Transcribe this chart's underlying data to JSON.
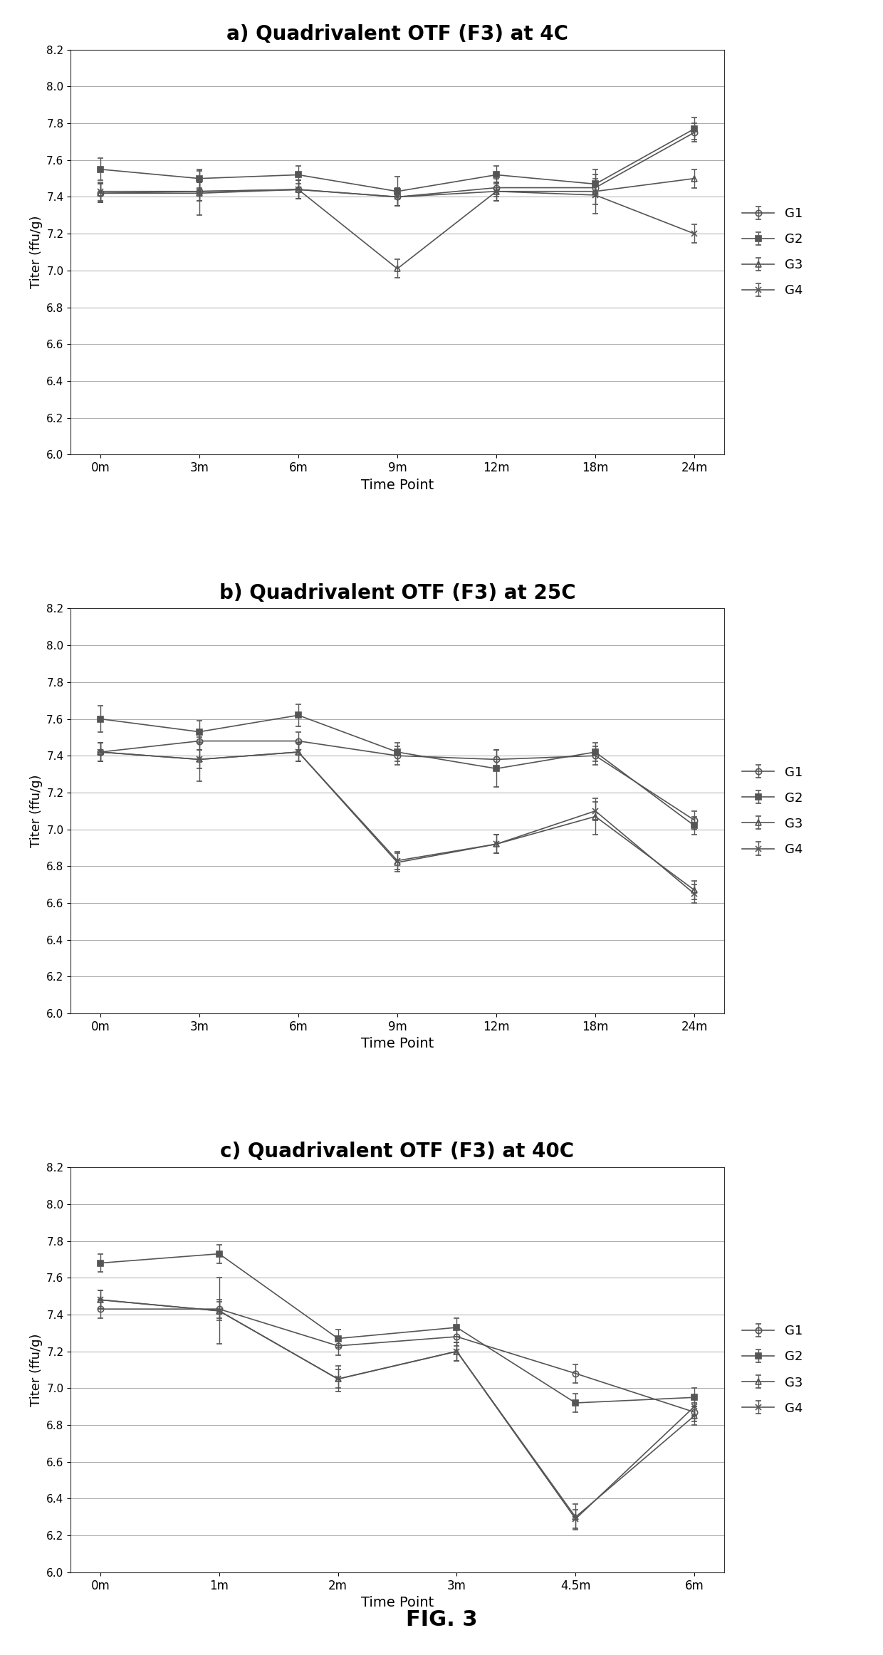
{
  "subplot_a": {
    "title": "a) Quadrivalent OTF (F3) at 4C",
    "xticklabels": [
      "0m",
      "3m",
      "6m",
      "9m",
      "12m",
      "18m",
      "24m"
    ],
    "xlabel": "Time Point",
    "ylabel": "Titer (ffu/g)",
    "ylim": [
      6.0,
      8.2
    ],
    "yticks": [
      6.0,
      6.2,
      6.4,
      6.6,
      6.8,
      7.0,
      7.2,
      7.4,
      7.6,
      7.8,
      8.0,
      8.2
    ],
    "G1": {
      "y": [
        7.42,
        7.43,
        7.44,
        7.4,
        7.45,
        7.45,
        7.75
      ],
      "yerr": [
        0.05,
        0.05,
        0.05,
        0.05,
        0.05,
        0.05,
        0.05
      ]
    },
    "G2": {
      "y": [
        7.55,
        7.5,
        7.52,
        7.43,
        7.52,
        7.47,
        7.77
      ],
      "yerr": [
        0.06,
        0.05,
        0.05,
        0.08,
        0.05,
        0.05,
        0.06
      ]
    },
    "G3": {
      "y": [
        7.42,
        7.42,
        7.44,
        7.01,
        7.43,
        7.43,
        7.5
      ],
      "yerr": [
        0.05,
        0.12,
        0.05,
        0.05,
        0.05,
        0.12,
        0.05
      ]
    },
    "G4": {
      "y": [
        7.43,
        7.43,
        7.44,
        7.4,
        7.43,
        7.41,
        7.2
      ],
      "yerr": [
        0.05,
        0.05,
        0.05,
        0.05,
        0.05,
        0.05,
        0.05
      ]
    }
  },
  "subplot_b": {
    "title": "b) Quadrivalent OTF (F3) at 25C",
    "xticklabels": [
      "0m",
      "3m",
      "6m",
      "9m",
      "12m",
      "18m",
      "24m"
    ],
    "xlabel": "Time Point",
    "ylabel": "Titer (ffu/g)",
    "ylim": [
      6.0,
      8.2
    ],
    "yticks": [
      6.0,
      6.2,
      6.4,
      6.6,
      6.8,
      7.0,
      7.2,
      7.4,
      7.6,
      7.8,
      8.0,
      8.2
    ],
    "G1": {
      "y": [
        7.42,
        7.48,
        7.48,
        7.4,
        7.38,
        7.4,
        7.05
      ],
      "yerr": [
        0.05,
        0.05,
        0.05,
        0.05,
        0.05,
        0.05,
        0.05
      ]
    },
    "G2": {
      "y": [
        7.6,
        7.53,
        7.62,
        7.42,
        7.33,
        7.42,
        7.02
      ],
      "yerr": [
        0.07,
        0.06,
        0.06,
        0.05,
        0.1,
        0.05,
        0.05
      ]
    },
    "G3": {
      "y": [
        7.42,
        7.38,
        7.42,
        6.82,
        6.92,
        7.07,
        6.67
      ],
      "yerr": [
        0.05,
        0.12,
        0.05,
        0.05,
        0.05,
        0.1,
        0.05
      ]
    },
    "G4": {
      "y": [
        7.42,
        7.38,
        7.42,
        6.83,
        6.92,
        7.1,
        6.65
      ],
      "yerr": [
        0.05,
        0.05,
        0.05,
        0.05,
        0.05,
        0.05,
        0.05
      ]
    }
  },
  "subplot_c": {
    "title": "c) Quadrivalent OTF (F3) at 40C",
    "xticklabels": [
      "0m",
      "1m",
      "2m",
      "3m",
      "4.5m",
      "6m"
    ],
    "xlabel": "Time Point",
    "ylabel": "Titer (ffu/g)",
    "ylim": [
      6.0,
      8.2
    ],
    "yticks": [
      6.0,
      6.2,
      6.4,
      6.6,
      6.8,
      7.0,
      7.2,
      7.4,
      7.6,
      7.8,
      8.0,
      8.2
    ],
    "G1": {
      "y": [
        7.43,
        7.43,
        7.23,
        7.28,
        7.08,
        6.87
      ],
      "yerr": [
        0.05,
        0.05,
        0.05,
        0.05,
        0.05,
        0.05
      ]
    },
    "G2": {
      "y": [
        7.68,
        7.73,
        7.27,
        7.33,
        6.92,
        6.95
      ],
      "yerr": [
        0.05,
        0.05,
        0.05,
        0.05,
        0.05,
        0.05
      ]
    },
    "G3": {
      "y": [
        7.48,
        7.42,
        7.05,
        7.2,
        6.3,
        6.85
      ],
      "yerr": [
        0.05,
        0.18,
        0.07,
        0.05,
        0.07,
        0.05
      ]
    },
    "G4": {
      "y": [
        7.48,
        7.42,
        7.05,
        7.2,
        6.29,
        6.9
      ],
      "yerr": [
        0.05,
        0.05,
        0.05,
        0.05,
        0.05,
        0.05
      ]
    }
  },
  "fig_label": "FIG. 3",
  "line_color": "#555555",
  "background_color": "#ffffff",
  "grid_color": "#aaaaaa",
  "groups": [
    "G1",
    "G2",
    "G3",
    "G4"
  ],
  "markers": {
    "G1": "o",
    "G2": "s",
    "G3": "^",
    "G4": "x"
  },
  "markerfacecolor": {
    "G1": "none",
    "G2": "#555555",
    "G3": "none",
    "G4": "none"
  }
}
